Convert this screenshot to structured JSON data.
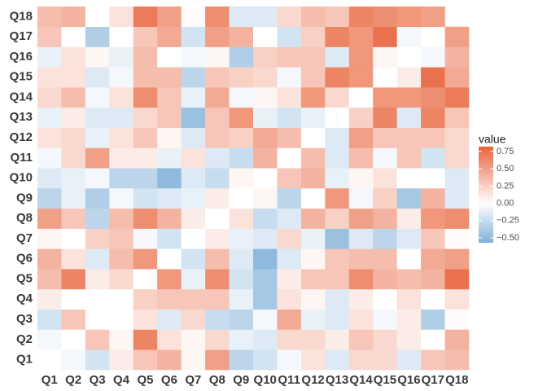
{
  "chart_data": {
    "type": "heatmap",
    "x_categories": [
      "Q1",
      "Q2",
      "Q3",
      "Q4",
      "Q5",
      "Q6",
      "Q7",
      "Q8",
      "Q9",
      "Q10",
      "Q11",
      "Q12",
      "Q13",
      "Q14",
      "Q15",
      "Q16",
      "Q17",
      "Q18"
    ],
    "y_categories": [
      "Q1",
      "Q2",
      "Q3",
      "Q4",
      "Q5",
      "Q6",
      "Q7",
      "Q8",
      "Q9",
      "Q10",
      "Q11",
      "Q12",
      "Q13",
      "Q14",
      "Q15",
      "Q16",
      "Q17",
      "Q18"
    ],
    "values": [
      [
        0,
        -0.05,
        -0.2,
        0.1,
        0.3,
        0.4,
        0.05,
        0.5,
        -0.3,
        -0.2,
        -0.05,
        0.15,
        -0.15,
        0.2,
        0.2,
        -0.15,
        0.3,
        0.35
      ],
      [
        -0.05,
        0,
        0.3,
        0.05,
        0.65,
        0.15,
        0.05,
        0.2,
        -0.1,
        -0.15,
        0.2,
        0.2,
        0.1,
        0.3,
        0.2,
        0.1,
        0,
        0.4
      ],
      [
        -0.2,
        0.3,
        0,
        0,
        0.15,
        -0.15,
        0.2,
        -0.25,
        -0.3,
        -0.05,
        0.45,
        -0.1,
        -0.15,
        0.15,
        -0.05,
        0.1,
        -0.35,
        0.02
      ],
      [
        0.1,
        0,
        0,
        0,
        0.25,
        0.3,
        0.3,
        0.3,
        -0.1,
        -0.4,
        0.15,
        0.05,
        -0.15,
        0.1,
        0,
        0.15,
        0,
        0.15
      ],
      [
        0.35,
        0.65,
        0.1,
        0.2,
        0,
        0.55,
        -0.1,
        0.6,
        -0.2,
        -0.4,
        0.1,
        0.3,
        0.3,
        0.6,
        0.4,
        0.35,
        0.4,
        0.75
      ],
      [
        0.4,
        0.15,
        -0.15,
        0.35,
        0.55,
        0,
        -0.2,
        0.35,
        -0.15,
        -0.5,
        -0.15,
        0.05,
        0.3,
        0.35,
        0.35,
        0,
        0.45,
        0.5
      ],
      [
        0.05,
        0,
        0.25,
        0.3,
        -0.05,
        -0.2,
        0,
        0.1,
        -0.1,
        -0.15,
        0.2,
        -0.1,
        -0.45,
        -0.15,
        -0.3,
        -0.15,
        0.3,
        0.02
      ],
      [
        0.5,
        0.3,
        -0.3,
        0.35,
        0.6,
        0.4,
        0.1,
        0,
        0.15,
        -0.25,
        -0.15,
        0.4,
        0.25,
        0.5,
        0.4,
        0.1,
        0.55,
        0.6
      ],
      [
        -0.3,
        -0.1,
        -0.35,
        -0.05,
        -0.2,
        -0.15,
        -0.1,
        0.1,
        0,
        0.05,
        -0.3,
        0,
        0.55,
        -0.05,
        0.25,
        -0.4,
        0.4,
        -0.15
      ],
      [
        -0.15,
        -0.1,
        -0.05,
        -0.3,
        -0.3,
        -0.5,
        -0.15,
        -0.25,
        0.05,
        0,
        0.3,
        0.4,
        -0.1,
        0.05,
        0.15,
        0,
        0,
        -0.15
      ],
      [
        -0.05,
        0.2,
        0.5,
        0.1,
        0.1,
        -0.1,
        0.15,
        -0.15,
        -0.25,
        0.4,
        0,
        0.35,
        -0.15,
        0.35,
        -0.05,
        0.3,
        -0.2,
        0.2
      ],
      [
        0.15,
        0.2,
        -0.1,
        0.15,
        0.3,
        0.05,
        -0.15,
        0.3,
        0.25,
        0.45,
        0.35,
        0,
        -0.15,
        0.5,
        0.3,
        0.3,
        0.3,
        0.2
      ],
      [
        -0.1,
        0.1,
        -0.15,
        -0.15,
        0.2,
        0.3,
        -0.45,
        0.3,
        0.55,
        -0.1,
        -0.2,
        -0.1,
        0,
        0.25,
        0.65,
        -0.15,
        0.65,
        0.3
      ],
      [
        0.2,
        0.35,
        -0.05,
        0.15,
        0.6,
        0.3,
        -0.1,
        0.45,
        -0.05,
        0.05,
        0.15,
        0.55,
        0.2,
        0,
        0.55,
        0.55,
        0.6,
        0.7
      ],
      [
        0.15,
        0.15,
        -0.15,
        -0.05,
        0.35,
        0.35,
        -0.3,
        0.3,
        0.25,
        0.2,
        -0.05,
        0.3,
        0.65,
        0.55,
        0,
        0.1,
        0.75,
        0.45
      ],
      [
        -0.1,
        0.15,
        0.05,
        -0.1,
        0.35,
        0,
        -0.05,
        0.05,
        -0.35,
        0.25,
        0.3,
        0.3,
        -0.15,
        0.55,
        0.05,
        0,
        -0.05,
        0.4
      ],
      [
        0.3,
        0,
        -0.35,
        0,
        0.3,
        0.45,
        -0.2,
        0.5,
        0.4,
        0,
        -0.2,
        0.25,
        0.65,
        0.55,
        0.75,
        -0.05,
        0,
        0.5
      ],
      [
        0.35,
        0.4,
        0,
        0.15,
        0.7,
        0.5,
        0.02,
        0.6,
        -0.15,
        -0.15,
        0.2,
        0.35,
        0.3,
        0.65,
        0.6,
        0.55,
        0.5,
        null
      ]
    ],
    "legend_title": "value",
    "clim": [
      -0.57,
      0.82
    ],
    "cticks": [
      {
        "value": 0.75,
        "label": "0.75"
      },
      {
        "value": 0.5,
        "label": "0.50"
      },
      {
        "value": 0.25,
        "label": "0.25"
      },
      {
        "value": 0,
        "label": "0.00"
      },
      {
        "value": -0.25,
        "label": "−0.25"
      },
      {
        "value": -0.5,
        "label": "−0.50"
      }
    ],
    "colors": {
      "low": "#7fb0d8",
      "mid": "#ffffff",
      "high": "#e8643c"
    }
  }
}
